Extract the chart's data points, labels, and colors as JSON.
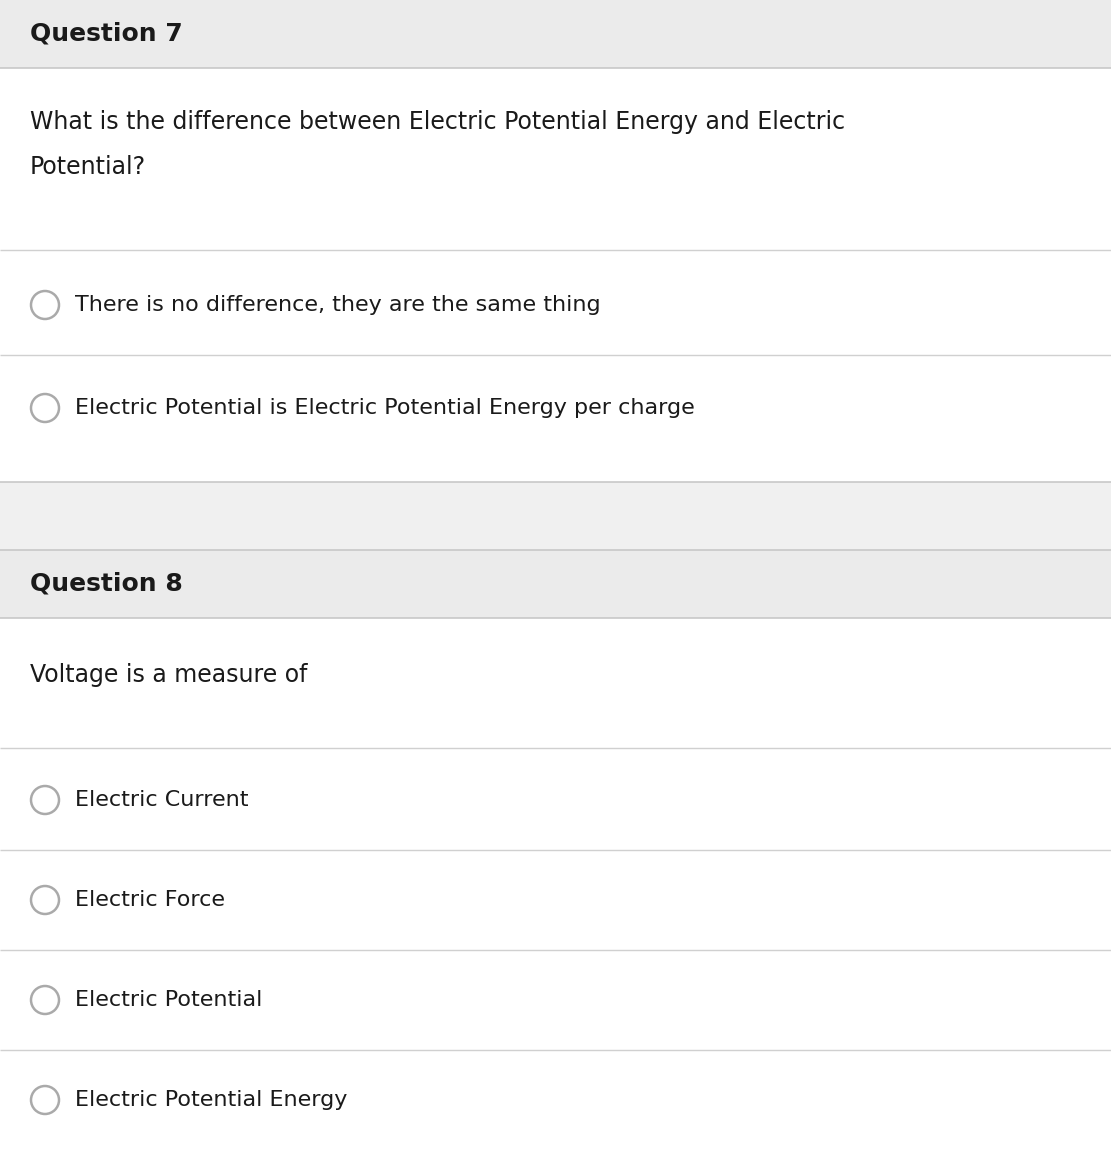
{
  "bg_outer": "#f0f0f0",
  "bg_header": "#ebebeb",
  "bg_white": "#ffffff",
  "border_color": "#c8c8c8",
  "divider_color": "#d0d0d0",
  "text_color": "#1a1a1a",
  "radio_color": "#aaaaaa",
  "q7_header": "Question 7",
  "q7_question_line1": "What is the difference between Electric Potential Energy and Electric",
  "q7_question_line2": "Potential?",
  "q7_options": [
    "There is no difference, they are the same thing",
    "Electric Potential is Electric Potential Energy per charge"
  ],
  "q8_header": "Question 8",
  "q8_question": "Voltage is a measure of",
  "q8_options": [
    "Electric Current",
    "Electric Force",
    "Electric Potential",
    "Electric Potential Energy"
  ],
  "fig_width": 11.11,
  "fig_height": 11.58,
  "dpi": 100
}
